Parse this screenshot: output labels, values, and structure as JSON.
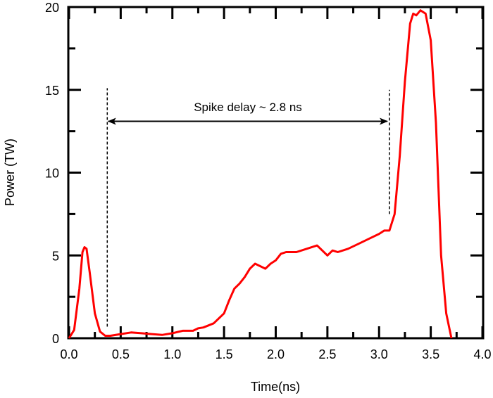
{
  "chart_data": {
    "type": "line",
    "title": "",
    "xlabel": "Time(ns)",
    "ylabel": "Power (TW)",
    "xlim": [
      0,
      4
    ],
    "ylim": [
      0,
      20
    ],
    "xticks": [
      "0.0",
      "0.5",
      "1.0",
      "1.5",
      "2.0",
      "2.5",
      "3.0",
      "3.5",
      "4.0"
    ],
    "yticks": [
      "0",
      "5",
      "10",
      "15",
      "20"
    ],
    "grid": false,
    "series": [
      {
        "color": "#ff0000",
        "x": [
          0,
          0.05,
          0.1,
          0.13,
          0.15,
          0.17,
          0.2,
          0.25,
          0.3,
          0.35,
          0.4,
          0.5,
          0.6,
          0.7,
          0.8,
          0.9,
          1.0,
          1.1,
          1.2,
          1.25,
          1.3,
          1.4,
          1.5,
          1.55,
          1.6,
          1.65,
          1.7,
          1.75,
          1.8,
          1.9,
          1.95,
          2.0,
          2.05,
          2.1,
          2.2,
          2.3,
          2.4,
          2.5,
          2.55,
          2.6,
          2.7,
          2.8,
          2.9,
          3.0,
          3.05,
          3.1,
          3.15,
          3.2,
          3.25,
          3.3,
          3.33,
          3.36,
          3.4,
          3.45,
          3.5,
          3.55,
          3.6,
          3.65,
          3.7
        ],
        "y": [
          0,
          0.5,
          3,
          5.2,
          5.5,
          5.4,
          4,
          1.5,
          0.4,
          0.15,
          0.15,
          0.25,
          0.35,
          0.3,
          0.25,
          0.2,
          0.3,
          0.45,
          0.45,
          0.6,
          0.65,
          0.9,
          1.5,
          2.3,
          3.0,
          3.3,
          3.7,
          4.2,
          4.5,
          4.2,
          4.5,
          4.7,
          5.1,
          5.2,
          5.2,
          5.4,
          5.6,
          5.0,
          5.3,
          5.2,
          5.4,
          5.7,
          6.0,
          6.3,
          6.5,
          6.5,
          7.5,
          11,
          15.5,
          19,
          19.6,
          19.5,
          19.8,
          19.6,
          18,
          13,
          5,
          1.5,
          0
        ]
      }
    ],
    "annotations": {
      "text": "Spike delay ~ 2.8 ns",
      "arrow": {
        "from": 0.38,
        "to": 3.08,
        "y": 13.1,
        "double_headed": true
      },
      "markers": [
        {
          "x": 0.37,
          "y_from": 0.7,
          "y_to": 15.1,
          "style": "dashed"
        },
        {
          "x": 3.1,
          "y_from": 7.5,
          "y_to": 15.0,
          "style": "dashed"
        }
      ]
    }
  }
}
